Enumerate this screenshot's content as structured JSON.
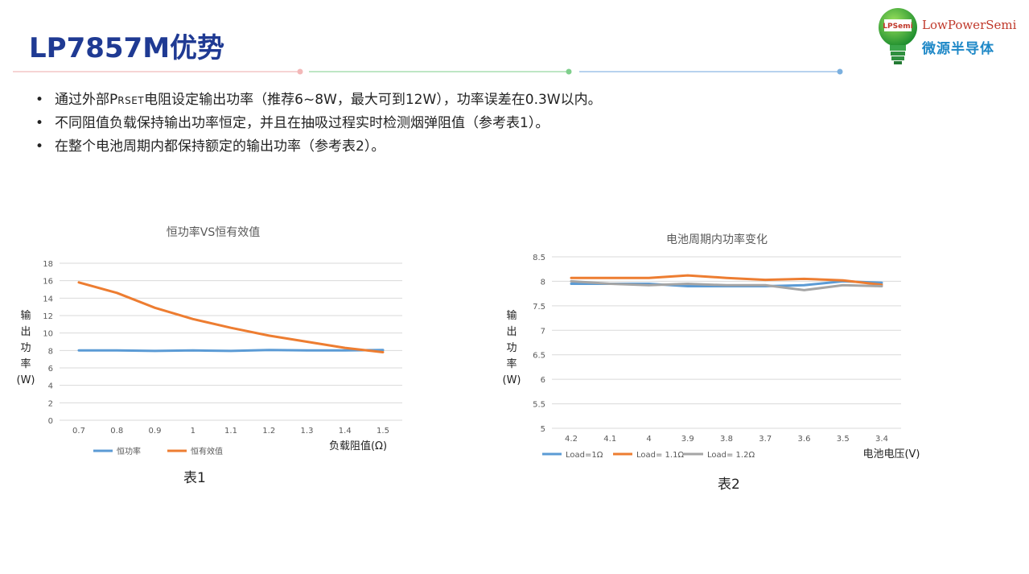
{
  "title": "LP7857M优势",
  "logo": {
    "badge": "LPSemi",
    "en": "LowPowerSemi",
    "cn": "微源半导体"
  },
  "colors": {
    "title": "#1f3a93",
    "blue": "#5b9bd5",
    "orange": "#ed7d31",
    "gray": "#a5a5a5"
  },
  "bullets": [
    {
      "pre": "通过外部P",
      "sub": "RSET",
      "post": "电阻设定输出功率（推荐6~8W，最大可到12W），功率误差在0.3W以内。"
    },
    {
      "text": "不同阻值负载保持输出功率恒定，并且在抽吸过程实时检测烟弹阻值（参考表1）。"
    },
    {
      "text": "在整个电池周期内都保持额定的输出功率（参考表2）。"
    }
  ],
  "captions": {
    "chart1": "表1",
    "chart2": "表2"
  },
  "chart_data": [
    {
      "type": "line",
      "title": "恒功率VS恒有效值",
      "ylabel": "输出功率(W)",
      "ylabel_lines": [
        "输",
        "出",
        "功",
        "率",
        "(W)"
      ],
      "xlabel": "负载阻值(Ω)",
      "categories": [
        "0.7",
        "0.8",
        "0.9",
        "1",
        "1.1",
        "1.2",
        "1.3",
        "1.4",
        "1.5"
      ],
      "yticks": [
        "0",
        "2",
        "4",
        "6",
        "8",
        "10",
        "12",
        "14",
        "16",
        "18"
      ],
      "ylim": [
        0,
        18
      ],
      "grid": true,
      "legend": "bottom",
      "series": [
        {
          "name": "恒功率",
          "color": "#5b9bd5",
          "values": [
            8.0,
            8.0,
            7.95,
            8.0,
            7.95,
            8.05,
            8.0,
            8.0,
            8.05
          ]
        },
        {
          "name": "恒有效值",
          "color": "#ed7d31",
          "values": [
            15.8,
            14.6,
            12.9,
            11.6,
            10.6,
            9.7,
            9.0,
            8.3,
            7.8
          ]
        }
      ]
    },
    {
      "type": "line",
      "title": "电池周期内功率变化",
      "ylabel": "输出功率(W)",
      "ylabel_lines": [
        "输",
        "出",
        "功",
        "率",
        "(W)"
      ],
      "xlabel": "电池电压(V)",
      "categories": [
        "4.2",
        "4.1",
        "4",
        "3.9",
        "3.8",
        "3.7",
        "3.6",
        "3.5",
        "3.4"
      ],
      "yticks": [
        "5",
        "5.5",
        "6",
        "6.5",
        "7",
        "7.5",
        "8",
        "8.5"
      ],
      "ylim": [
        5,
        8.5
      ],
      "grid": true,
      "legend": "bottom",
      "series": [
        {
          "name": "Load=1Ω",
          "color": "#5b9bd5",
          "values": [
            7.95,
            7.95,
            7.95,
            7.9,
            7.9,
            7.9,
            7.92,
            8.0,
            7.97
          ]
        },
        {
          "name": "Load= 1.1Ω",
          "color": "#ed7d31",
          "values": [
            8.07,
            8.07,
            8.07,
            8.12,
            8.07,
            8.03,
            8.05,
            8.02,
            7.93
          ]
        },
        {
          "name": "Load= 1.2Ω",
          "color": "#a5a5a5",
          "values": [
            8.0,
            7.95,
            7.92,
            7.95,
            7.92,
            7.92,
            7.82,
            7.92,
            7.9
          ]
        }
      ]
    }
  ]
}
